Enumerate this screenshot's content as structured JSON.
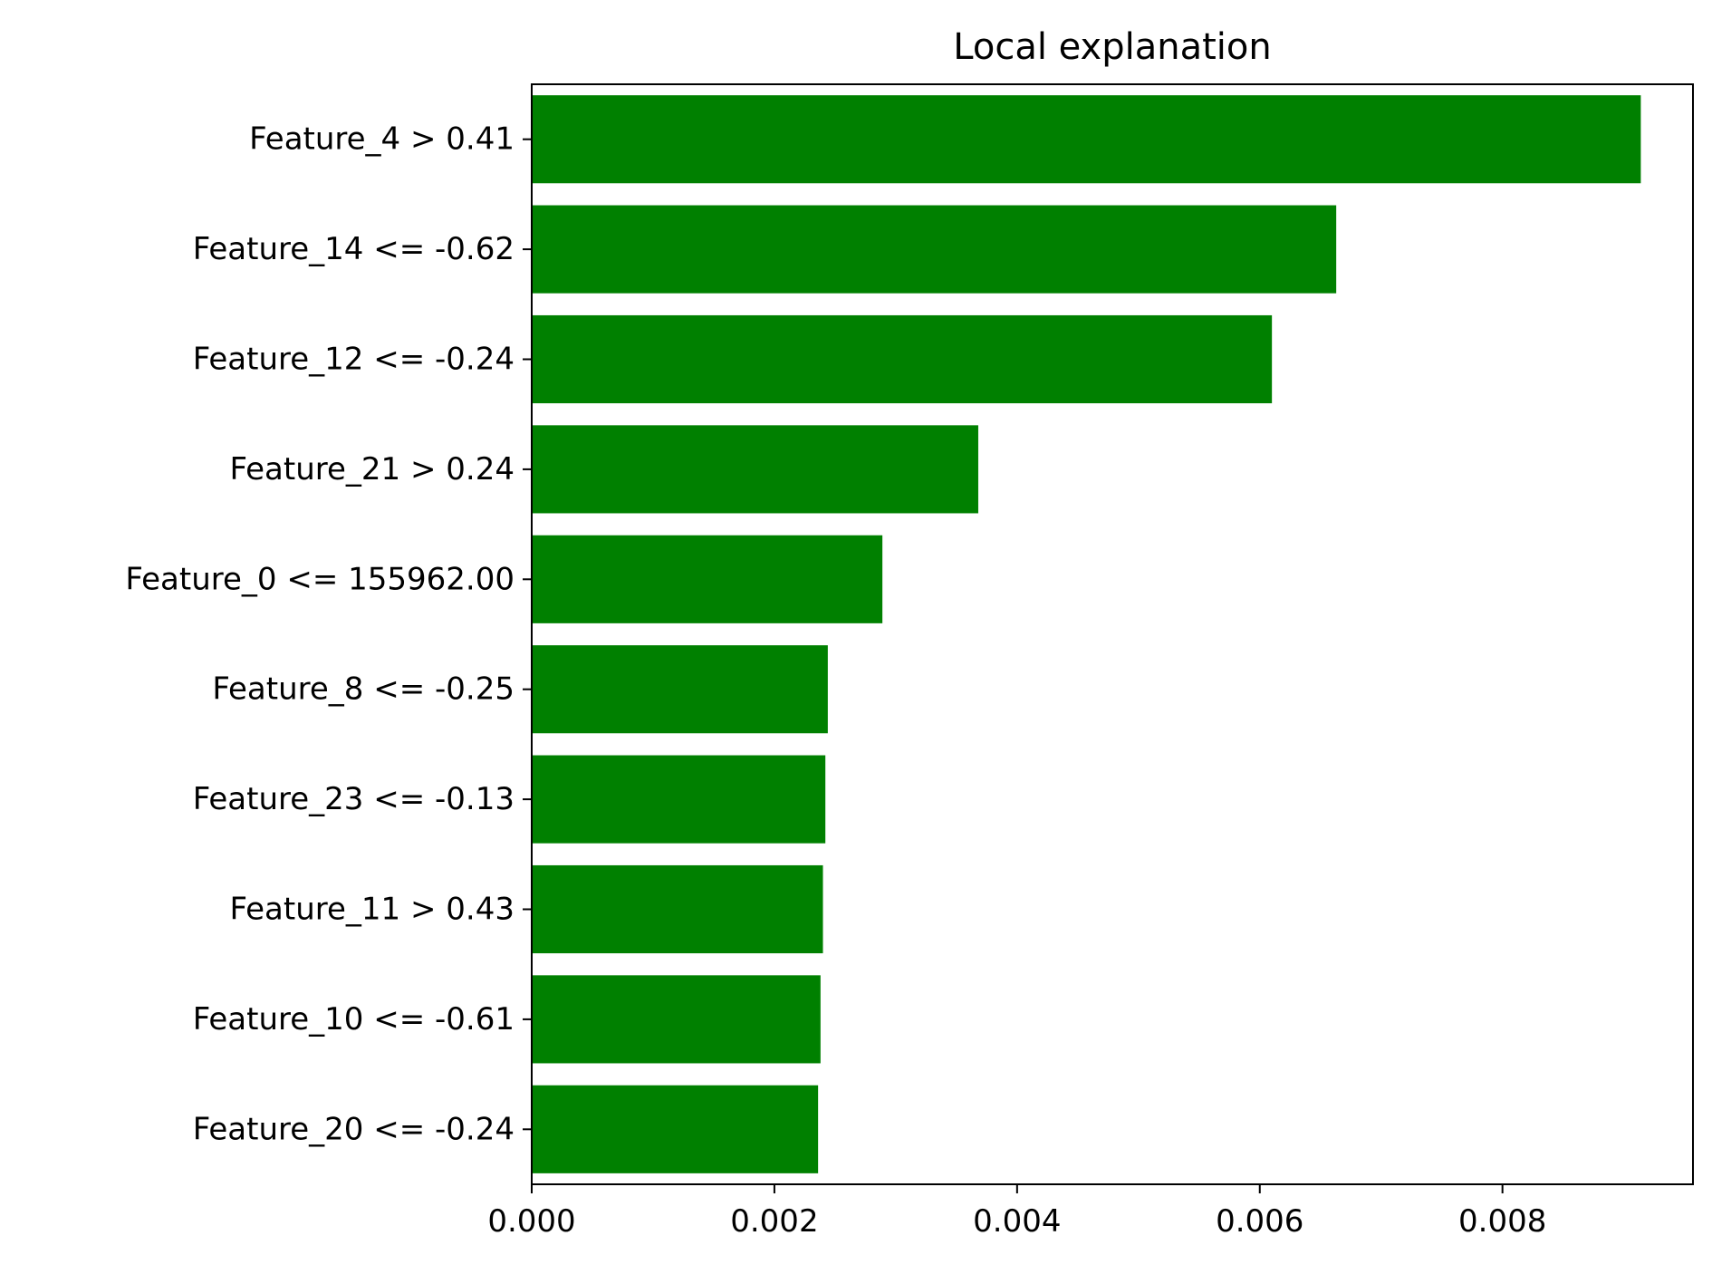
{
  "chart_data": {
    "type": "bar",
    "orientation": "horizontal",
    "title": "Local explanation",
    "xlabel": "",
    "ylabel": "",
    "categories": [
      "Feature_4 > 0.41",
      "Feature_14 <= -0.62",
      "Feature_12 <= -0.24",
      "Feature_21 > 0.24",
      "Feature_0 <= 155962.00",
      "Feature_8 <= -0.25",
      "Feature_23 <= -0.13",
      "Feature_11 > 0.43",
      "Feature_10 <= -0.61",
      "Feature_20 <= -0.24"
    ],
    "values": [
      0.00914,
      0.00663,
      0.0061,
      0.00368,
      0.00289,
      0.00244,
      0.00242,
      0.0024,
      0.00238,
      0.00236
    ],
    "bar_color": "#008000",
    "xlim": [
      0,
      0.00957
    ],
    "xticks": [
      "0.000",
      "0.002",
      "0.004",
      "0.006",
      "0.008"
    ],
    "xtick_values": [
      0,
      0.002,
      0.004,
      0.006,
      0.008
    ],
    "grid": false,
    "legend": "none"
  }
}
